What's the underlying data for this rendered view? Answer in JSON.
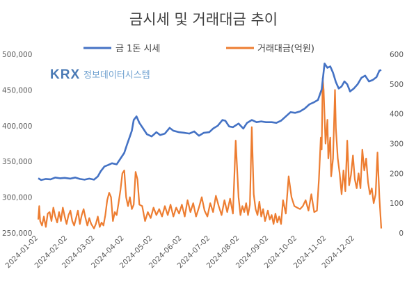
{
  "chart_data": {
    "type": "line",
    "title": "금시세 및 거래대금 추이",
    "watermark": {
      "brand": "KRX",
      "text": "정보데이터시스템"
    },
    "legend": {
      "placement": "top"
    },
    "grid": false,
    "x_tick_labels": [
      "2024-01-02",
      "2024-02-02",
      "2024-03-02",
      "2024-04-02",
      "2024-05-02",
      "2024-06-02",
      "2024-07-02",
      "2024-08-02",
      "2024-09-02",
      "2024-10-02",
      "2024-11-02",
      "2024-12-02"
    ],
    "x_range": [
      "2024-01-02",
      "2024-12-30"
    ],
    "y_left": {
      "ticks": [
        "250,000",
        "300,000",
        "350,000",
        "400,000",
        "450,000",
        "500,000"
      ],
      "ylim": [
        250000,
        500000
      ]
    },
    "y_right": {
      "ticks": [
        "0",
        "100",
        "200",
        "300",
        "400",
        "500",
        "600"
      ],
      "ylim": [
        0,
        600
      ]
    },
    "series": [
      {
        "name": "금 1돈 시세",
        "axis": "left",
        "color": "#4472c4",
        "points": [
          [
            "2024-01-02",
            326500
          ],
          [
            "2024-01-05",
            324000
          ],
          [
            "2024-01-10",
            325500
          ],
          [
            "2024-01-15",
            325000
          ],
          [
            "2024-01-20",
            327500
          ],
          [
            "2024-01-25",
            326500
          ],
          [
            "2024-01-30",
            327000
          ],
          [
            "2024-02-05",
            326000
          ],
          [
            "2024-02-10",
            327500
          ],
          [
            "2024-02-15",
            325500
          ],
          [
            "2024-02-20",
            324500
          ],
          [
            "2024-02-25",
            326000
          ],
          [
            "2024-03-01",
            324500
          ],
          [
            "2024-03-05",
            329000
          ],
          [
            "2024-03-08",
            336000
          ],
          [
            "2024-03-12",
            343000
          ],
          [
            "2024-03-16",
            345000
          ],
          [
            "2024-03-20",
            347500
          ],
          [
            "2024-03-25",
            346000
          ],
          [
            "2024-03-28",
            352000
          ],
          [
            "2024-04-02",
            362000
          ],
          [
            "2024-04-05",
            374000
          ],
          [
            "2024-04-08",
            385000
          ],
          [
            "2024-04-10",
            393000
          ],
          [
            "2024-04-12",
            408000
          ],
          [
            "2024-04-15",
            413000
          ],
          [
            "2024-04-18",
            404000
          ],
          [
            "2024-04-22",
            396000
          ],
          [
            "2024-04-26",
            388000
          ],
          [
            "2024-05-01",
            385000
          ],
          [
            "2024-05-06",
            391000
          ],
          [
            "2024-05-10",
            387000
          ],
          [
            "2024-05-15",
            389000
          ],
          [
            "2024-05-20",
            397000
          ],
          [
            "2024-05-24",
            393000
          ],
          [
            "2024-05-30",
            391000
          ],
          [
            "2024-06-05",
            390000
          ],
          [
            "2024-06-10",
            389000
          ],
          [
            "2024-06-15",
            392000
          ],
          [
            "2024-06-20",
            386000
          ],
          [
            "2024-06-25",
            390000
          ],
          [
            "2024-07-01",
            391000
          ],
          [
            "2024-07-05",
            396000
          ],
          [
            "2024-07-10",
            400000
          ],
          [
            "2024-07-15",
            408000
          ],
          [
            "2024-07-18",
            407000
          ],
          [
            "2024-07-22",
            399000
          ],
          [
            "2024-07-26",
            398000
          ],
          [
            "2024-08-01",
            403000
          ],
          [
            "2024-08-06",
            396000
          ],
          [
            "2024-08-10",
            404000
          ],
          [
            "2024-08-15",
            408000
          ],
          [
            "2024-08-20",
            405000
          ],
          [
            "2024-08-25",
            406000
          ],
          [
            "2024-08-30",
            405000
          ],
          [
            "2024-09-05",
            405000
          ],
          [
            "2024-09-10",
            404000
          ],
          [
            "2024-09-15",
            407000
          ],
          [
            "2024-09-20",
            413000
          ],
          [
            "2024-09-25",
            419000
          ],
          [
            "2024-09-30",
            418000
          ],
          [
            "2024-10-05",
            420000
          ],
          [
            "2024-10-10",
            424000
          ],
          [
            "2024-10-15",
            430000
          ],
          [
            "2024-10-20",
            433000
          ],
          [
            "2024-10-24",
            436000
          ],
          [
            "2024-10-28",
            451000
          ],
          [
            "2024-10-31",
            487000
          ],
          [
            "2024-11-03",
            481000
          ],
          [
            "2024-11-06",
            483000
          ],
          [
            "2024-11-09",
            474000
          ],
          [
            "2024-11-12",
            461000
          ],
          [
            "2024-11-15",
            452000
          ],
          [
            "2024-11-18",
            455000
          ],
          [
            "2024-11-21",
            462000
          ],
          [
            "2024-11-24",
            458000
          ],
          [
            "2024-11-27",
            448000
          ],
          [
            "2024-12-01",
            452000
          ],
          [
            "2024-12-05",
            458000
          ],
          [
            "2024-12-09",
            467000
          ],
          [
            "2024-12-13",
            470000
          ],
          [
            "2024-12-17",
            462000
          ],
          [
            "2024-12-21",
            464000
          ],
          [
            "2024-12-25",
            468000
          ],
          [
            "2024-12-28",
            477000
          ],
          [
            "2024-12-30",
            478000
          ]
        ]
      },
      {
        "name": "거래대금(억원)",
        "axis": "right",
        "color": "#ed7d31",
        "points": [
          [
            "2024-01-02",
            45
          ],
          [
            "2024-01-03",
            90
          ],
          [
            "2024-01-04",
            40
          ],
          [
            "2024-01-06",
            25
          ],
          [
            "2024-01-08",
            55
          ],
          [
            "2024-01-10",
            20
          ],
          [
            "2024-01-12",
            65
          ],
          [
            "2024-01-14",
            70
          ],
          [
            "2024-01-16",
            40
          ],
          [
            "2024-01-18",
            85
          ],
          [
            "2024-01-20",
            55
          ],
          [
            "2024-01-22",
            35
          ],
          [
            "2024-01-24",
            70
          ],
          [
            "2024-01-26",
            40
          ],
          [
            "2024-01-28",
            85
          ],
          [
            "2024-01-30",
            55
          ],
          [
            "2024-02-01",
            30
          ],
          [
            "2024-02-03",
            60
          ],
          [
            "2024-02-05",
            75
          ],
          [
            "2024-02-07",
            40
          ],
          [
            "2024-02-09",
            25
          ],
          [
            "2024-02-11",
            50
          ],
          [
            "2024-02-13",
            75
          ],
          [
            "2024-02-15",
            30
          ],
          [
            "2024-02-17",
            60
          ],
          [
            "2024-02-19",
            80
          ],
          [
            "2024-02-21",
            50
          ],
          [
            "2024-02-23",
            25
          ],
          [
            "2024-02-25",
            50
          ],
          [
            "2024-02-27",
            30
          ],
          [
            "2024-03-01",
            15
          ],
          [
            "2024-03-03",
            30
          ],
          [
            "2024-03-05",
            55
          ],
          [
            "2024-03-07",
            20
          ],
          [
            "2024-03-09",
            35
          ],
          [
            "2024-03-11",
            25
          ],
          [
            "2024-03-13",
            60
          ],
          [
            "2024-03-15",
            110
          ],
          [
            "2024-03-17",
            135
          ],
          [
            "2024-03-19",
            120
          ],
          [
            "2024-03-21",
            40
          ],
          [
            "2024-03-23",
            70
          ],
          [
            "2024-03-25",
            60
          ],
          [
            "2024-03-27",
            100
          ],
          [
            "2024-03-29",
            145
          ],
          [
            "2024-03-31",
            200
          ],
          [
            "2024-04-02",
            210
          ],
          [
            "2024-04-04",
            120
          ],
          [
            "2024-04-06",
            90
          ],
          [
            "2024-04-08",
            120
          ],
          [
            "2024-04-10",
            80
          ],
          [
            "2024-04-12",
            95
          ],
          [
            "2024-04-14",
            205
          ],
          [
            "2024-04-16",
            180
          ],
          [
            "2024-04-18",
            95
          ],
          [
            "2024-04-21",
            90
          ],
          [
            "2024-04-24",
            40
          ],
          [
            "2024-04-27",
            70
          ],
          [
            "2024-04-30",
            50
          ],
          [
            "2024-05-03",
            85
          ],
          [
            "2024-05-06",
            60
          ],
          [
            "2024-05-09",
            80
          ],
          [
            "2024-05-12",
            55
          ],
          [
            "2024-05-15",
            90
          ],
          [
            "2024-05-18",
            60
          ],
          [
            "2024-05-21",
            95
          ],
          [
            "2024-05-24",
            55
          ],
          [
            "2024-05-27",
            85
          ],
          [
            "2024-05-30",
            65
          ],
          [
            "2024-06-02",
            95
          ],
          [
            "2024-06-05",
            55
          ],
          [
            "2024-06-08",
            110
          ],
          [
            "2024-06-11",
            70
          ],
          [
            "2024-06-14",
            100
          ],
          [
            "2024-06-17",
            55
          ],
          [
            "2024-06-20",
            85
          ],
          [
            "2024-06-23",
            120
          ],
          [
            "2024-06-26",
            75
          ],
          [
            "2024-06-29",
            55
          ],
          [
            "2024-07-02",
            100
          ],
          [
            "2024-07-05",
            70
          ],
          [
            "2024-07-08",
            125
          ],
          [
            "2024-07-11",
            90
          ],
          [
            "2024-07-14",
            60
          ],
          [
            "2024-07-17",
            110
          ],
          [
            "2024-07-20",
            70
          ],
          [
            "2024-07-23",
            115
          ],
          [
            "2024-07-26",
            65
          ],
          [
            "2024-07-29",
            310
          ],
          [
            "2024-08-01",
            120
          ],
          [
            "2024-08-03",
            60
          ],
          [
            "2024-08-05",
            90
          ],
          [
            "2024-08-07",
            70
          ],
          [
            "2024-08-09",
            100
          ],
          [
            "2024-08-11",
            60
          ],
          [
            "2024-08-13",
            95
          ],
          [
            "2024-08-15",
            355
          ],
          [
            "2024-08-17",
            130
          ],
          [
            "2024-08-19",
            80
          ],
          [
            "2024-08-21",
            60
          ],
          [
            "2024-08-23",
            105
          ],
          [
            "2024-08-25",
            55
          ],
          [
            "2024-08-27",
            80
          ],
          [
            "2024-08-29",
            40
          ],
          [
            "2024-09-01",
            75
          ],
          [
            "2024-09-03",
            45
          ],
          [
            "2024-09-05",
            60
          ],
          [
            "2024-09-07",
            30
          ],
          [
            "2024-09-09",
            65
          ],
          [
            "2024-09-11",
            35
          ],
          [
            "2024-09-13",
            55
          ],
          [
            "2024-09-15",
            30
          ],
          [
            "2024-09-17",
            110
          ],
          [
            "2024-09-20",
            65
          ],
          [
            "2024-09-23",
            190
          ],
          [
            "2024-09-26",
            120
          ],
          [
            "2024-09-29",
            90
          ],
          [
            "2024-10-02",
            85
          ],
          [
            "2024-10-05",
            80
          ],
          [
            "2024-10-08",
            90
          ],
          [
            "2024-10-11",
            110
          ],
          [
            "2024-10-14",
            75
          ],
          [
            "2024-10-17",
            130
          ],
          [
            "2024-10-20",
            70
          ],
          [
            "2024-10-23",
            75
          ],
          [
            "2024-10-25",
            180
          ],
          [
            "2024-10-27",
            320
          ],
          [
            "2024-10-28",
            280
          ],
          [
            "2024-10-29",
            520
          ],
          [
            "2024-10-30",
            480
          ],
          [
            "2024-11-01",
            300
          ],
          [
            "2024-11-03",
            380
          ],
          [
            "2024-11-04",
            250
          ],
          [
            "2024-11-06",
            320
          ],
          [
            "2024-11-07",
            190
          ],
          [
            "2024-11-09",
            250
          ],
          [
            "2024-11-11",
            480
          ],
          [
            "2024-11-12",
            350
          ],
          [
            "2024-11-14",
            250
          ],
          [
            "2024-11-16",
            200
          ],
          [
            "2024-11-18",
            130
          ],
          [
            "2024-11-20",
            210
          ],
          [
            "2024-11-22",
            140
          ],
          [
            "2024-11-24",
            310
          ],
          [
            "2024-11-26",
            160
          ],
          [
            "2024-11-28",
            195
          ],
          [
            "2024-11-30",
            260
          ],
          [
            "2024-12-02",
            180
          ],
          [
            "2024-12-04",
            150
          ],
          [
            "2024-12-06",
            200
          ],
          [
            "2024-12-08",
            150
          ],
          [
            "2024-12-10",
            280
          ],
          [
            "2024-12-12",
            210
          ],
          [
            "2024-12-14",
            250
          ],
          [
            "2024-12-16",
            170
          ],
          [
            "2024-12-18",
            130
          ],
          [
            "2024-12-20",
            150
          ],
          [
            "2024-12-22",
            100
          ],
          [
            "2024-12-24",
            130
          ],
          [
            "2024-12-26",
            270
          ],
          [
            "2024-12-28",
            120
          ],
          [
            "2024-12-30",
            15
          ]
        ]
      }
    ]
  }
}
